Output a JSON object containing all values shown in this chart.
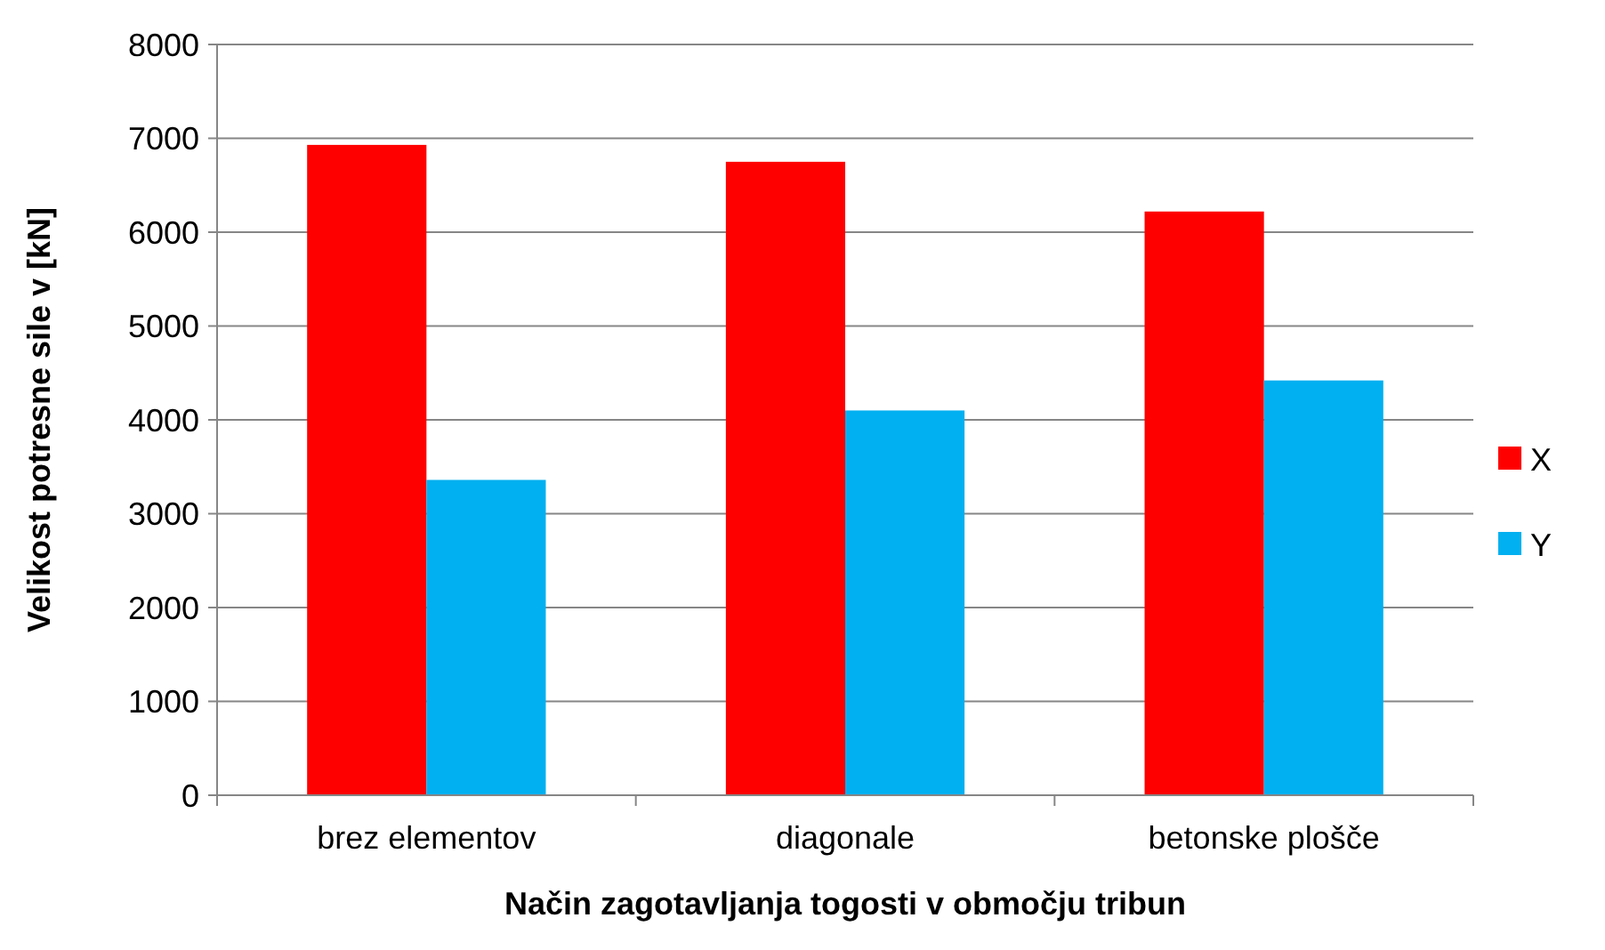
{
  "chart_data": {
    "type": "bar",
    "xlabel": "Način zagotavljanja togosti v območju tribun",
    "ylabel": "Velikost potresne sile v [kN]",
    "categories": [
      "brez elementov",
      "diagonale",
      "betonske plošče"
    ],
    "series": [
      {
        "name": "X",
        "color": "#ff0000",
        "values": [
          6930,
          6750,
          6220
        ]
      },
      {
        "name": "Y",
        "color": "#00b0f0",
        "values": [
          3360,
          4100,
          4420
        ]
      }
    ],
    "ylim": [
      0,
      8000
    ],
    "yticks": [
      0,
      1000,
      2000,
      3000,
      4000,
      5000,
      6000,
      7000,
      8000
    ],
    "grid": "y",
    "legend": "right"
  }
}
